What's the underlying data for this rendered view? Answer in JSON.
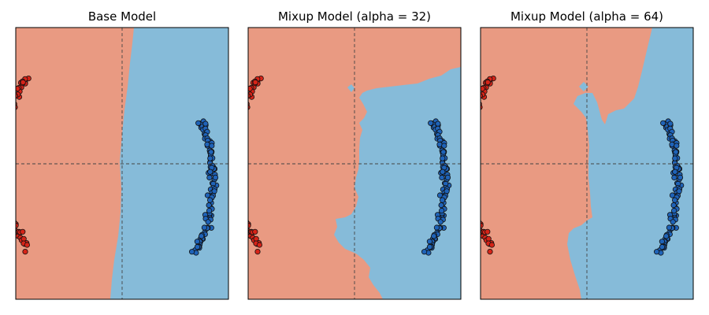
{
  "colors": {
    "class_red": "#e99a82",
    "class_blue": "#86bbd9",
    "point_red": "#d62418",
    "point_blue": "#1f63b8",
    "point_edge": "#111111",
    "crosshair": "#444444"
  },
  "chart_data": [
    {
      "type": "scatter",
      "title": "Base Model",
      "xlim": [
        -1,
        1
      ],
      "ylim": [
        -1,
        1
      ],
      "grid": false,
      "crosshair": [
        0,
        0
      ],
      "boundary": {
        "x": [
          0.1,
          0.05,
          0.0,
          -0.02,
          -0.1
        ],
        "y": [
          1.0,
          0.5,
          0.0,
          -0.5,
          -1.0
        ]
      }
    },
    {
      "type": "scatter",
      "title": "Mixup Model (alpha = 32)",
      "xlim": [
        -1,
        1
      ],
      "ylim": [
        -1,
        1
      ],
      "grid": false,
      "crosshair": [
        0,
        0
      ],
      "boundary": {
        "x": [
          1.0,
          0.7,
          0.3,
          0.05,
          0.0,
          -0.2,
          0.2,
          0.3,
          -1.0
        ],
        "y": [
          0.7,
          0.6,
          0.5,
          0.3,
          0.0,
          -0.5,
          -0.8,
          -1.0,
          -1.0
        ]
      }
    },
    {
      "type": "scatter",
      "title": "Mixup Model (alpha = 64)",
      "xlim": [
        -1,
        1
      ],
      "ylim": [
        -1,
        1
      ],
      "grid": false,
      "crosshair": [
        0,
        0
      ],
      "boundary": {
        "x": [
          0.6,
          0.5,
          0.35,
          0.0,
          0.05,
          0.1,
          -0.1,
          -1.0
        ],
        "y": [
          1.0,
          0.6,
          0.4,
          0.4,
          0.0,
          -0.5,
          -1.0,
          -1.0
        ]
      }
    }
  ]
}
